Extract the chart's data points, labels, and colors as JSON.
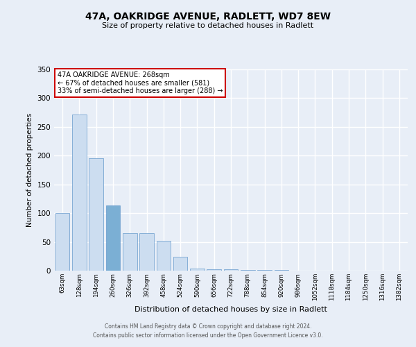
{
  "title_line1": "47A, OAKRIDGE AVENUE, RADLETT, WD7 8EW",
  "title_line2": "Size of property relative to detached houses in Radlett",
  "xlabel": "Distribution of detached houses by size in Radlett",
  "ylabel": "Number of detached properties",
  "categories": [
    "63sqm",
    "128sqm",
    "194sqm",
    "260sqm",
    "326sqm",
    "392sqm",
    "458sqm",
    "524sqm",
    "590sqm",
    "656sqm",
    "722sqm",
    "788sqm",
    "854sqm",
    "920sqm",
    "986sqm",
    "1052sqm",
    "1118sqm",
    "1184sqm",
    "1250sqm",
    "1316sqm",
    "1382sqm"
  ],
  "values": [
    100,
    272,
    196,
    114,
    65,
    65,
    52,
    24,
    4,
    3,
    2,
    1,
    1,
    1,
    0,
    0,
    0,
    0,
    0,
    0,
    0
  ],
  "bar_color": "#ccddf0",
  "bar_edge_color": "#6699cc",
  "annotation_title": "47A OAKRIDGE AVENUE: 268sqm",
  "annotation_line2": "← 67% of detached houses are smaller (581)",
  "annotation_line3": "33% of semi-detached houses are larger (288) →",
  "annotation_box_color": "#ffffff",
  "annotation_box_edge": "#cc0000",
  "highlight_bar_index": 3,
  "highlight_bar_color": "#7bafd4",
  "ylim": [
    0,
    350
  ],
  "yticks": [
    0,
    50,
    100,
    150,
    200,
    250,
    300,
    350
  ],
  "bg_color": "#e8eef7",
  "plot_bg_color": "#e8eef7",
  "footer_line1": "Contains HM Land Registry data © Crown copyright and database right 2024.",
  "footer_line2": "Contains public sector information licensed under the Open Government Licence v3.0."
}
